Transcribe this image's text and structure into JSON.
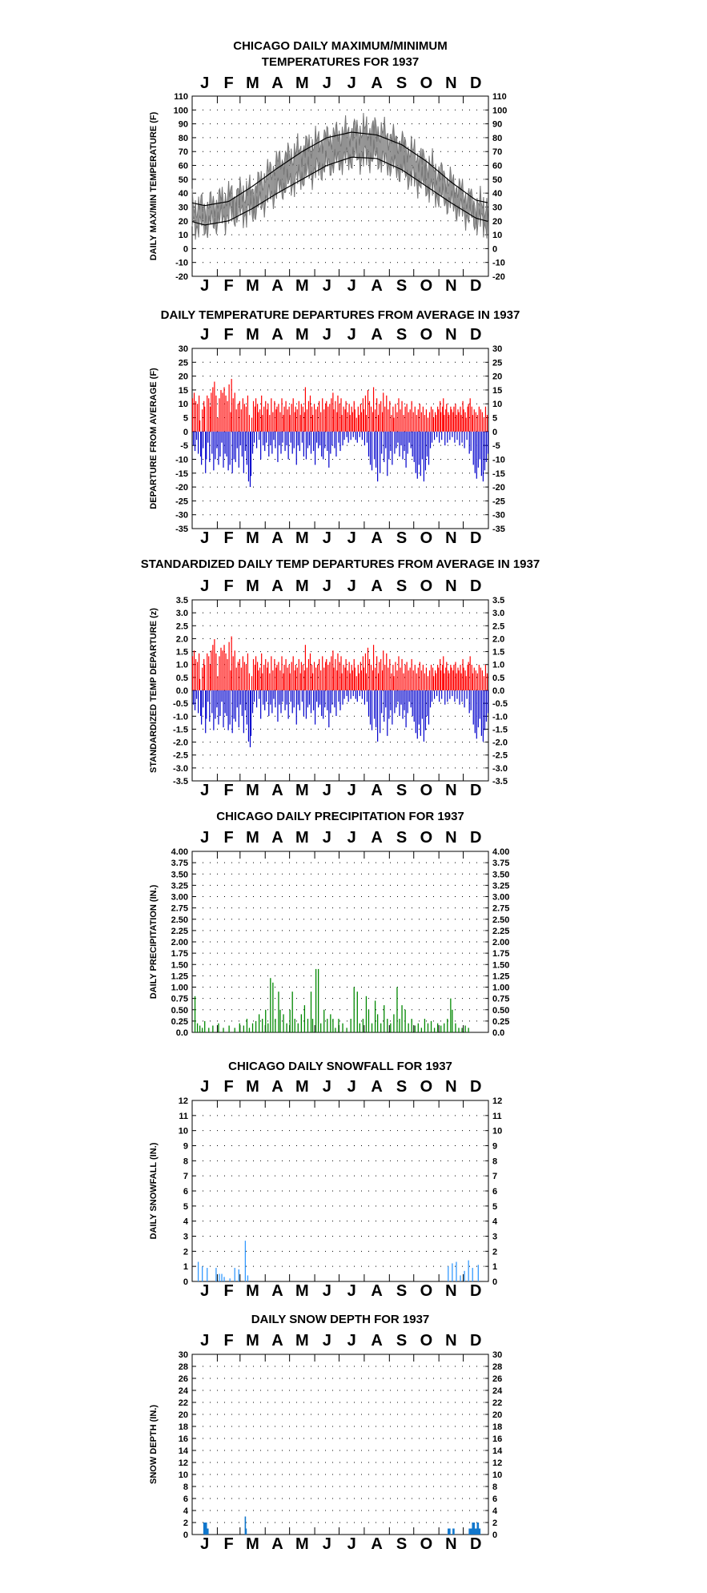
{
  "months": [
    "J",
    "F",
    "M",
    "A",
    "M",
    "J",
    "J",
    "A",
    "S",
    "O",
    "N",
    "D"
  ],
  "colors": {
    "warm": "#ff0000",
    "cold": "#0000cc",
    "precip": "#008800",
    "snow": "#3399ff",
    "depth": "#1177cc",
    "observed": "#777777",
    "normal": "#000000"
  },
  "chart_data": [
    {
      "id": "temps",
      "type": "line",
      "title_lines": [
        "CHICAGO DAILY MAXIMUM/MINIMUM",
        "TEMPERATURES FOR 1937"
      ],
      "ylabel": "DAILY MAX/MIN TEMPERATURE (F)",
      "ylim": [
        -20,
        110
      ],
      "yticks": [
        "110",
        "100",
        "90",
        "80",
        "70",
        "60",
        "50",
        "40",
        "30",
        "20",
        "10",
        "0",
        "-10",
        "-20"
      ],
      "normal_max_monthly": [
        31,
        34,
        45,
        58,
        70,
        80,
        84,
        82,
        75,
        63,
        48,
        35
      ],
      "normal_min_monthly": [
        17,
        20,
        29,
        40,
        50,
        60,
        66,
        65,
        57,
        45,
        33,
        22
      ],
      "observed_max_monthly": [
        30,
        38,
        42,
        62,
        72,
        80,
        85,
        86,
        76,
        62,
        48,
        32
      ],
      "observed_min_monthly": [
        16,
        24,
        27,
        42,
        52,
        60,
        66,
        66,
        56,
        45,
        32,
        20
      ]
    },
    {
      "id": "departures",
      "type": "bar",
      "title_lines": [
        "DAILY TEMPERATURE DEPARTURES FROM AVERAGE IN 1937"
      ],
      "ylabel": "DEPARTURE FROM AVERAGE (F)",
      "ylim": [
        -35,
        30
      ],
      "yticks": [
        "30",
        "25",
        "20",
        "15",
        "10",
        "5",
        "0",
        "-5",
        "-10",
        "-15",
        "-20",
        "-25",
        "-30",
        "-35"
      ],
      "daily_values": [
        12,
        -5,
        14,
        -7,
        11,
        -3,
        10,
        -8,
        13,
        4,
        -9,
        -12,
        8,
        -6,
        11,
        9,
        -15,
        -10,
        13,
        -4,
        12,
        -11,
        9,
        14,
        -8,
        16,
        -14,
        18,
        -10,
        13,
        -6,
        5,
        -12,
        12,
        -9,
        15,
        -4,
        14,
        -13,
        16,
        -8,
        13,
        -9,
        11,
        -14,
        17,
        -12,
        7,
        19,
        -15,
        12,
        -10,
        14,
        -11,
        8,
        -6,
        10,
        -13,
        11,
        -5,
        8,
        -9,
        12,
        -15,
        10,
        -7,
        9,
        -12,
        13,
        -18,
        6,
        -20,
        -16,
        5,
        -8,
        11,
        -4,
        9,
        12,
        -6,
        10,
        7,
        -3,
        8,
        -10,
        13,
        6,
        -5,
        9,
        -7,
        11,
        -4,
        8,
        10,
        -9,
        6,
        -5,
        12,
        -8,
        7,
        -3,
        11,
        -6,
        8,
        9,
        -11,
        10,
        -5,
        7,
        -8,
        12,
        -4,
        6,
        9,
        -7,
        11,
        -5,
        8,
        -10,
        9,
        6,
        -4,
        10,
        -8,
        12,
        -6,
        7,
        9,
        -12,
        8,
        -5,
        11,
        -7,
        6,
        10,
        -4,
        9,
        -9,
        7,
        16,
        -10,
        8,
        -6,
        11,
        -5,
        13,
        -8,
        9,
        6,
        -7,
        10,
        -12,
        8,
        -4,
        9,
        -6,
        11,
        -5,
        7,
        -9,
        12,
        -10,
        8,
        -6,
        10,
        11,
        -7,
        9,
        -13,
        10,
        -8,
        12,
        -5,
        14,
        8,
        -6,
        11,
        -9,
        7,
        13,
        -4,
        10,
        -7,
        12,
        6,
        -5,
        9,
        -3,
        8,
        11,
        -2,
        7,
        -4,
        10,
        6,
        -3,
        9,
        7,
        -2,
        11,
        8,
        -3,
        5,
        -4,
        9,
        6,
        -2,
        10,
        7,
        -3,
        12,
        8,
        -5,
        13,
        6,
        -4,
        15,
        -9,
        11,
        -12,
        9,
        -14,
        7,
        16,
        -10,
        8,
        -13,
        12,
        -18,
        6,
        10,
        -15,
        11,
        -8,
        7,
        14,
        -11,
        9,
        -6,
        13,
        -16,
        8,
        -10,
        11,
        -7,
        6,
        -12,
        9,
        5,
        -8,
        10,
        -6,
        7,
        -4,
        12,
        -9,
        8,
        -5,
        11,
        -10,
        6,
        -7,
        9,
        -13,
        10,
        -8,
        7,
        -4,
        8,
        -6,
        11,
        -9,
        7,
        -11,
        9,
        -15,
        6,
        -17,
        8,
        -12,
        10,
        -16,
        7,
        -10,
        9,
        -18,
        6,
        -14,
        8,
        -9,
        5,
        -12,
        7,
        -6,
        9,
        -4,
        8,
        5,
        -3,
        7,
        6,
        -2,
        9,
        8,
        -4,
        11,
        7,
        -3,
        9,
        12,
        6,
        -5,
        8,
        10,
        -4,
        7,
        6,
        -3,
        9,
        8,
        -2,
        7,
        9,
        -4,
        10,
        6,
        -3,
        8,
        7,
        -5,
        9,
        6,
        -4,
        11,
        8,
        -6,
        7,
        5,
        -3,
        9,
        10,
        -8,
        12,
        -7,
        9,
        6,
        -12,
        8,
        -15,
        7,
        -17,
        6,
        -13,
        9,
        -10,
        8,
        -16,
        7,
        -18,
        5,
        -14,
        9,
        -11,
        6,
        -8,
        10,
        -5,
        7,
        -6,
        9,
        -4,
        8,
        5,
        -9,
        11,
        7,
        -12,
        9,
        -5,
        8,
        10,
        -6
      ],
      "positive_color": "#ff0000",
      "negative_color": "#0000cc"
    },
    {
      "id": "standardized",
      "type": "bar",
      "title_lines": [
        "STANDARDIZED DAILY TEMP DEPARTURES FROM AVERAGE IN 1937"
      ],
      "ylabel": "STANDARDIZED TEMP DEPARTURE (z)",
      "ylim": [
        -3.5,
        3.5
      ],
      "yticks": [
        "3.5",
        "3.0",
        "2.5",
        "2.0",
        "1.5",
        "1.0",
        "0.5",
        "0.0",
        "-0.5",
        "-1.0",
        "-1.5",
        "-2.0",
        "-2.5",
        "-3.0",
        "-3.5"
      ],
      "scale_from_departures": 0.11,
      "positive_color": "#ff0000",
      "negative_color": "#0000cc"
    },
    {
      "id": "precip",
      "type": "bar",
      "title_lines": [
        "CHICAGO DAILY PRECIPITATION FOR 1937"
      ],
      "ylabel": "DAILY PRECIPITATION (IN.)",
      "ylim": [
        0,
        4
      ],
      "yticks": [
        "4.00",
        "3.75",
        "3.50",
        "3.25",
        "3.00",
        "2.75",
        "2.50",
        "2.25",
        "2.00",
        "1.75",
        "1.50",
        "1.25",
        "1.00",
        "0.75",
        "0.50",
        "0.25",
        "0.0"
      ],
      "events": [
        [
          3,
          0.8
        ],
        [
          6,
          0.2
        ],
        [
          9,
          0.15
        ],
        [
          12,
          0.1
        ],
        [
          15,
          0.25
        ],
        [
          20,
          0.1
        ],
        [
          25,
          0.15
        ],
        [
          32,
          0.2
        ],
        [
          38,
          0.1
        ],
        [
          45,
          0.15
        ],
        [
          52,
          0.1
        ],
        [
          58,
          0.2
        ],
        [
          63,
          0.15
        ],
        [
          67,
          0.3
        ],
        [
          70,
          0.1
        ],
        [
          74,
          0.2
        ],
        [
          78,
          0.25
        ],
        [
          82,
          0.4
        ],
        [
          86,
          0.3
        ],
        [
          90,
          0.5
        ],
        [
          93,
          0.2
        ],
        [
          96,
          1.2
        ],
        [
          99,
          1.1
        ],
        [
          102,
          0.3
        ],
        [
          106,
          0.9
        ],
        [
          108,
          0.5
        ],
        [
          112,
          0.4
        ],
        [
          116,
          0.2
        ],
        [
          120,
          0.5
        ],
        [
          123,
          0.9
        ],
        [
          126,
          0.3
        ],
        [
          130,
          0.2
        ],
        [
          134,
          0.4
        ],
        [
          138,
          0.6
        ],
        [
          142,
          0.3
        ],
        [
          146,
          0.9
        ],
        [
          148,
          0.3
        ],
        [
          152,
          1.4
        ],
        [
          155,
          1.4
        ],
        [
          158,
          0.2
        ],
        [
          162,
          0.5
        ],
        [
          166,
          0.3
        ],
        [
          170,
          0.4
        ],
        [
          173,
          0.3
        ],
        [
          176,
          0.1
        ],
        [
          180,
          0.3
        ],
        [
          185,
          0.2
        ],
        [
          190,
          0.1
        ],
        [
          195,
          0.3
        ],
        [
          199,
          1.0
        ],
        [
          203,
          0.9
        ],
        [
          206,
          0.2
        ],
        [
          210,
          0.3
        ],
        [
          214,
          0.8
        ],
        [
          217,
          0.5
        ],
        [
          221,
          0.2
        ],
        [
          225,
          0.7
        ],
        [
          228,
          0.4
        ],
        [
          232,
          0.2
        ],
        [
          236,
          0.6
        ],
        [
          240,
          0.3
        ],
        [
          244,
          0.2
        ],
        [
          248,
          0.4
        ],
        [
          252,
          1.0
        ],
        [
          255,
          0.3
        ],
        [
          258,
          0.6
        ],
        [
          262,
          0.5
        ],
        [
          266,
          0.2
        ],
        [
          270,
          0.3
        ],
        [
          274,
          0.15
        ],
        [
          278,
          0.2
        ],
        [
          282,
          0.1
        ],
        [
          286,
          0.3
        ],
        [
          290,
          0.2
        ],
        [
          294,
          0.25
        ],
        [
          298,
          0.1
        ],
        [
          302,
          0.2
        ],
        [
          306,
          0.15
        ],
        [
          310,
          0.2
        ],
        [
          314,
          0.3
        ],
        [
          318,
          0.75
        ],
        [
          320,
          0.5
        ],
        [
          324,
          0.2
        ],
        [
          328,
          0.1
        ],
        [
          332,
          0.1
        ],
        [
          336,
          0.15
        ],
        [
          340,
          0.1
        ]
      ],
      "color": "#008800"
    },
    {
      "id": "snowfall",
      "type": "bar",
      "title_lines": [
        "CHICAGO DAILY SNOWFALL FOR 1937"
      ],
      "ylabel": "DAILY SNOWFALL (IN.)",
      "ylim": [
        0,
        12
      ],
      "yticks": [
        "12",
        "11",
        "10",
        "9",
        "8",
        "7",
        "6",
        "5",
        "4",
        "3",
        "2",
        "1",
        "0"
      ],
      "events": [
        [
          7,
          1.3
        ],
        [
          12,
          1.0
        ],
        [
          18,
          0.9
        ],
        [
          29,
          0.9
        ],
        [
          33,
          0.5
        ],
        [
          36,
          0.5
        ],
        [
          39,
          0.3
        ],
        [
          46,
          0.2
        ],
        [
          52,
          0.9
        ],
        [
          57,
          0.8
        ],
        [
          65,
          2.7
        ],
        [
          68,
          0.4
        ],
        [
          315,
          1.0
        ],
        [
          320,
          1.2
        ],
        [
          325,
          1.3
        ],
        [
          330,
          0.4
        ],
        [
          335,
          0.7
        ],
        [
          340,
          1.4
        ],
        [
          345,
          0.9
        ],
        [
          352,
          1.1
        ]
      ],
      "color": "#3399ff"
    },
    {
      "id": "snowdepth",
      "type": "bar",
      "title_lines": [
        "DAILY SNOW DEPTH FOR 1937"
      ],
      "ylabel": "SNOW DEPTH (IN.)",
      "ylim": [
        0,
        30
      ],
      "yticks": [
        "30",
        "28",
        "26",
        "24",
        "22",
        "20",
        "18",
        "16",
        "14",
        "12",
        "10",
        "8",
        "6",
        "4",
        "2",
        "0"
      ],
      "events": [
        [
          14,
          2
        ],
        [
          15,
          2
        ],
        [
          16,
          2
        ],
        [
          17,
          2
        ],
        [
          18,
          1
        ],
        [
          19,
          1
        ],
        [
          65,
          3
        ],
        [
          66,
          1
        ],
        [
          315,
          1
        ],
        [
          316,
          1
        ],
        [
          317,
          1
        ],
        [
          321,
          1
        ],
        [
          322,
          1
        ],
        [
          341,
          1
        ],
        [
          342,
          1
        ],
        [
          343,
          1
        ],
        [
          344,
          1
        ],
        [
          345,
          2
        ],
        [
          346,
          2
        ],
        [
          347,
          2
        ],
        [
          348,
          1
        ],
        [
          349,
          1
        ],
        [
          350,
          1
        ],
        [
          351,
          2
        ],
        [
          352,
          2
        ],
        [
          353,
          1
        ],
        [
          354,
          1
        ]
      ],
      "color": "#1177cc"
    }
  ]
}
